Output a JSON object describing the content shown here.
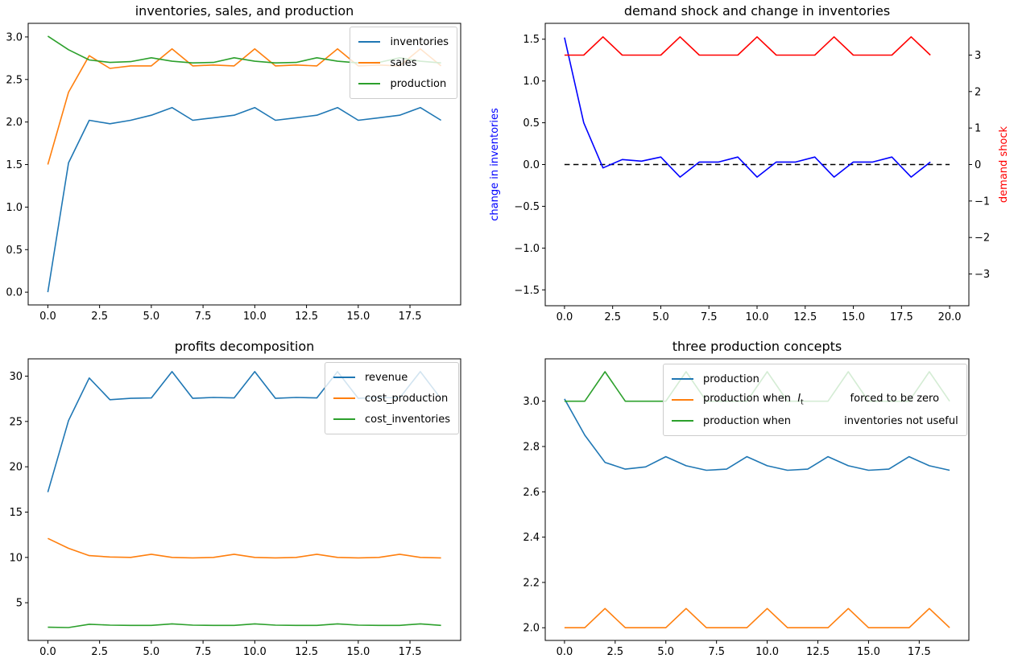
{
  "palette": {
    "blue": "#1f77b4",
    "orange": "#ff7f0e",
    "green": "#2ca02c",
    "pure_blue": "#0000ff",
    "pure_red": "#ff0000",
    "black": "#000000"
  },
  "chart_data": [
    {
      "type": "line",
      "title": "inventories, sales, and production",
      "grid": false,
      "legend_position": "upper right",
      "x": [
        0,
        1,
        2,
        3,
        4,
        5,
        6,
        7,
        8,
        9,
        10,
        11,
        12,
        13,
        14,
        15,
        16,
        17,
        18,
        19
      ],
      "xlim": [
        -0.95,
        19.95
      ],
      "ylim": [
        -0.15,
        3.16
      ],
      "xticks": {
        "values": [
          0,
          2.5,
          5,
          7.5,
          10,
          12.5,
          15,
          17.5
        ],
        "labels": [
          "0.0",
          "2.5",
          "5.0",
          "7.5",
          "10.0",
          "12.5",
          "15.0",
          "17.5"
        ]
      },
      "yticks": {
        "values": [
          0,
          0.5,
          1,
          1.5,
          2,
          2.5,
          3
        ],
        "labels": [
          "0.0",
          "0.5",
          "1.0",
          "1.5",
          "2.0",
          "2.5",
          "3.0"
        ]
      },
      "series": [
        {
          "name": "inventories",
          "color": "#1f77b4",
          "values": [
            0.0,
            1.52,
            2.02,
            1.98,
            2.02,
            2.08,
            2.17,
            2.02,
            2.05,
            2.08,
            2.17,
            2.02,
            2.05,
            2.08,
            2.17,
            2.02,
            2.05,
            2.08,
            2.17,
            2.02
          ]
        },
        {
          "name": "sales",
          "color": "#ff7f0e",
          "values": [
            1.5,
            2.35,
            2.78,
            2.63,
            2.66,
            2.66,
            2.86,
            2.66,
            2.67,
            2.66,
            2.86,
            2.66,
            2.67,
            2.66,
            2.86,
            2.66,
            2.67,
            2.66,
            2.86,
            2.66
          ]
        },
        {
          "name": "production",
          "color": "#2ca02c",
          "values": [
            3.01,
            2.85,
            2.73,
            2.7,
            2.71,
            2.755,
            2.715,
            2.695,
            2.7,
            2.755,
            2.715,
            2.695,
            2.7,
            2.755,
            2.715,
            2.695,
            2.7,
            2.755,
            2.715,
            2.695
          ]
        }
      ],
      "legend": [
        {
          "label": "inventories",
          "color": "#1f77b4"
        },
        {
          "label": "sales",
          "color": "#ff7f0e"
        },
        {
          "label": "production",
          "color": "#2ca02c"
        }
      ]
    },
    {
      "type": "line",
      "title": "demand shock and change in inventories",
      "grid": false,
      "ylabel_left": {
        "text": "change in inventories",
        "color": "#0000ff"
      },
      "ylabel_right": {
        "text": "demand shock",
        "color": "#ff0000"
      },
      "x": [
        0,
        1,
        2,
        3,
        4,
        5,
        6,
        7,
        8,
        9,
        10,
        11,
        12,
        13,
        14,
        15,
        16,
        17,
        18,
        19
      ],
      "xlim": [
        -1.0,
        21.0
      ],
      "ylim": [
        -1.69,
        1.69
      ],
      "ylim_right": [
        -3.87,
        3.87
      ],
      "xticks": {
        "values": [
          0,
          2.5,
          5,
          7.5,
          10,
          12.5,
          15,
          17.5,
          20
        ],
        "labels": [
          "0.0",
          "2.5",
          "5.0",
          "7.5",
          "10.0",
          "12.5",
          "15.0",
          "17.5",
          "20.0"
        ]
      },
      "yticks": {
        "values": [
          -1.5,
          -1,
          -0.5,
          0,
          0.5,
          1,
          1.5
        ],
        "labels": [
          "−1.5",
          "−1.0",
          "−0.5",
          "0.0",
          "0.5",
          "1.0",
          "1.5"
        ]
      },
      "yticks_right": {
        "values": [
          -3,
          -2,
          -1,
          0,
          1,
          2,
          3
        ],
        "labels": [
          "−3",
          "−2",
          "−1",
          "0",
          "1",
          "2",
          "3"
        ]
      },
      "series": [
        {
          "name": "zero line",
          "color": "#000000",
          "dashed": true,
          "x": [
            0,
            20
          ],
          "values": [
            0,
            0
          ]
        },
        {
          "name": "change in inventories",
          "color": "#0000ff",
          "values": [
            1.52,
            0.5,
            -0.04,
            0.06,
            0.04,
            0.09,
            -0.15,
            0.03,
            0.03,
            0.09,
            -0.15,
            0.03,
            0.03,
            0.09,
            -0.15,
            0.03,
            0.03,
            0.09,
            -0.15,
            0.03
          ]
        },
        {
          "name": "demand shock",
          "color": "#ff0000",
          "axis": "right",
          "values": [
            3,
            3,
            3.5,
            3,
            3,
            3,
            3.5,
            3,
            3,
            3,
            3.5,
            3,
            3,
            3,
            3.5,
            3,
            3,
            3,
            3.5,
            3
          ]
        }
      ]
    },
    {
      "type": "line",
      "title": "profits decomposition",
      "grid": false,
      "legend_position": "upper right",
      "x": [
        0,
        1,
        2,
        3,
        4,
        5,
        6,
        7,
        8,
        9,
        10,
        11,
        12,
        13,
        14,
        15,
        16,
        17,
        18,
        19
      ],
      "xlim": [
        -0.95,
        19.95
      ],
      "ylim": [
        0.84,
        31.91
      ],
      "xticks": {
        "values": [
          0,
          2.5,
          5,
          7.5,
          10,
          12.5,
          15,
          17.5
        ],
        "labels": [
          "0.0",
          "2.5",
          "5.0",
          "7.5",
          "10.0",
          "12.5",
          "15.0",
          "17.5"
        ]
      },
      "yticks": {
        "values": [
          5,
          10,
          15,
          20,
          25,
          30
        ],
        "labels": [
          "5",
          "10",
          "15",
          "20",
          "25",
          "30"
        ]
      },
      "series": [
        {
          "name": "revenue",
          "color": "#1f77b4",
          "values": [
            17.2,
            25.1,
            29.8,
            27.4,
            27.55,
            27.6,
            30.5,
            27.55,
            27.65,
            27.6,
            30.5,
            27.55,
            27.65,
            27.6,
            30.5,
            27.55,
            27.65,
            27.6,
            30.5,
            27.5
          ]
        },
        {
          "name": "cost_production",
          "color": "#ff7f0e",
          "values": [
            12.1,
            11.0,
            10.2,
            10.05,
            10.0,
            10.35,
            10.0,
            9.95,
            10.0,
            10.35,
            10.0,
            9.95,
            10.0,
            10.35,
            10.0,
            9.95,
            10.0,
            10.35,
            10.0,
            9.95
          ]
        },
        {
          "name": "cost_inventories",
          "color": "#2ca02c",
          "values": [
            2.3,
            2.26,
            2.62,
            2.53,
            2.5,
            2.5,
            2.67,
            2.53,
            2.5,
            2.5,
            2.67,
            2.53,
            2.5,
            2.5,
            2.67,
            2.53,
            2.5,
            2.5,
            2.67,
            2.5
          ]
        }
      ],
      "legend": [
        {
          "label": "revenue",
          "color": "#1f77b4"
        },
        {
          "label": "cost_production",
          "color": "#ff7f0e"
        },
        {
          "label": "cost_inventories",
          "color": "#2ca02c"
        }
      ]
    },
    {
      "type": "line",
      "title": "three production concepts",
      "grid": false,
      "legend_position": "upper center",
      "x": [
        0,
        1,
        2,
        3,
        4,
        5,
        6,
        7,
        8,
        9,
        10,
        11,
        12,
        13,
        14,
        15,
        16,
        17,
        18,
        19
      ],
      "xlim": [
        -0.95,
        19.95
      ],
      "ylim": [
        1.944,
        3.187
      ],
      "xticks": {
        "values": [
          0,
          2.5,
          5,
          7.5,
          10,
          12.5,
          15,
          17.5
        ],
        "labels": [
          "0.0",
          "2.5",
          "5.0",
          "7.5",
          "10.0",
          "12.5",
          "15.0",
          "17.5"
        ]
      },
      "yticks": {
        "values": [
          2.0,
          2.2,
          2.4,
          2.6,
          2.8,
          3.0
        ],
        "labels": [
          "2.0",
          "2.2",
          "2.4",
          "2.6",
          "2.8",
          "3.0"
        ]
      },
      "series": [
        {
          "name": "production",
          "color": "#1f77b4",
          "values": [
            3.01,
            2.85,
            2.73,
            2.7,
            2.71,
            2.755,
            2.715,
            2.695,
            2.7,
            2.755,
            2.715,
            2.695,
            2.7,
            2.755,
            2.715,
            2.695,
            2.7,
            2.755,
            2.715,
            2.695
          ]
        },
        {
          "name": "production when I_t forced to be zero",
          "color": "#ff7f0e",
          "values": [
            2.0,
            2.0,
            2.085,
            2.0,
            2.0,
            2.0,
            2.085,
            2.0,
            2.0,
            2.0,
            2.085,
            2.0,
            2.0,
            2.0,
            2.085,
            2.0,
            2.0,
            2.0,
            2.085,
            2.0
          ]
        },
        {
          "name": "production when inventories not useful",
          "color": "#2ca02c",
          "values": [
            3.0,
            3.0,
            3.13,
            3.0,
            3.0,
            3.0,
            3.13,
            3.0,
            3.0,
            3.0,
            3.13,
            3.0,
            3.0,
            3.0,
            3.13,
            3.0,
            3.0,
            3.0,
            3.13,
            3.0
          ]
        }
      ],
      "legend": [
        {
          "label": "production",
          "color": "#1f77b4"
        },
        {
          "label": "production when  $I_t$              forced to be zero",
          "color": "#ff7f0e"
        },
        {
          "label": "production when                inventories not useful",
          "color": "#2ca02c"
        }
      ]
    }
  ]
}
